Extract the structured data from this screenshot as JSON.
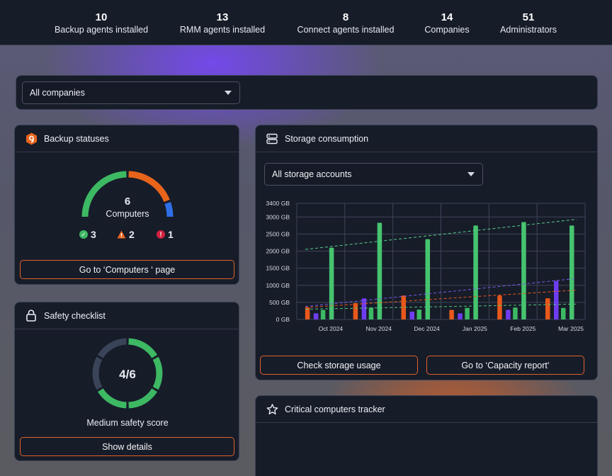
{
  "stats": [
    {
      "value": "10",
      "label": "Backup agents installed"
    },
    {
      "value": "13",
      "label": "RMM agents installed"
    },
    {
      "value": "8",
      "label": "Connect agents installed"
    },
    {
      "value": "14",
      "label": "Companies"
    },
    {
      "value": "51",
      "label": "Administrators"
    }
  ],
  "company_filter": {
    "selected": "All companies"
  },
  "backup_statuses": {
    "title": "Backup statuses",
    "icon": "backup-shield-icon",
    "total": "6",
    "total_label": "Computers",
    "ok_count": "3",
    "warning_count": "2",
    "error_count": "1",
    "button": "Go to ‘Computers ‘ page",
    "colors": {
      "ok": "#3db863",
      "warning": "#e8641b",
      "error": "#d0213f",
      "info": "#2f6fe6"
    }
  },
  "safety_checklist": {
    "title": "Safety checklist",
    "icon": "lock-icon",
    "score": "4/6",
    "score_label": "Medium safety score",
    "button": "Show details",
    "completed": 4,
    "total": 6
  },
  "storage": {
    "title": "Storage consumption",
    "icon": "storage-server-icon",
    "account_filter": "All storage accounts",
    "button_usage": "Check storage usage",
    "button_capacity": "Go to ‘Capacity report‘"
  },
  "critical_tracker": {
    "title": "Critical computers tracker",
    "icon": "star-icon"
  },
  "chart_data": {
    "type": "bar",
    "categories": [
      "Oct 2024",
      "Nov 2024",
      "Dec 2024",
      "Jan 2025",
      "Feb 2025",
      "Mar 2025"
    ],
    "ylim": [
      0,
      3400
    ],
    "yticks": [
      "0 GB",
      "500 GB",
      "1000 GB",
      "1500 GB",
      "2000 GB",
      "2500 GB",
      "3000 GB",
      "3400 GB"
    ],
    "ytick_values": [
      0,
      500,
      1000,
      1500,
      2000,
      2500,
      3000,
      3400
    ],
    "grid": true,
    "series": [
      {
        "color": "#e8581a",
        "values": [
          350,
          480,
          700,
          280,
          700,
          620
        ]
      },
      {
        "color": "#6f3df0",
        "values": [
          180,
          620,
          230,
          180,
          280,
          1130
        ]
      },
      {
        "color": "#3db863",
        "values": [
          280,
          350,
          290,
          340,
          350,
          340
        ]
      },
      {
        "color": "#46c46e",
        "values": [
          2100,
          2830,
          2350,
          2750,
          2850,
          2750
        ]
      }
    ],
    "trendlines": [
      {
        "color": "#56d08a",
        "from": 2050,
        "to": 2930
      },
      {
        "color": "#7a5cf0",
        "from": 380,
        "to": 1200
      },
      {
        "color": "#e8581a",
        "from": 350,
        "to": 860
      },
      {
        "color": "#4fc77a",
        "from": 300,
        "to": 450
      }
    ]
  }
}
